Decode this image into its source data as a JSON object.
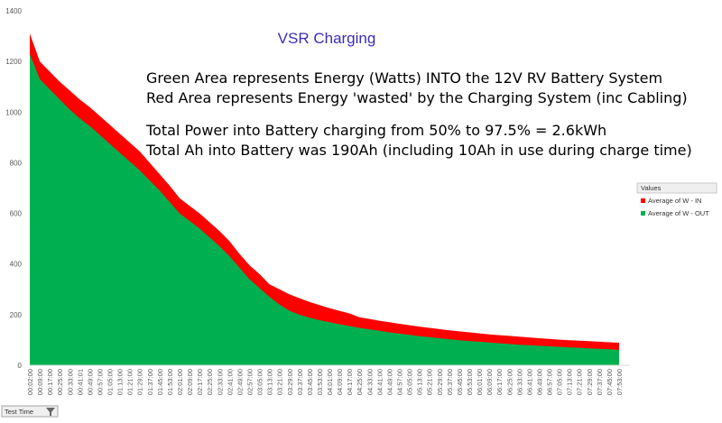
{
  "chart_data": {
    "type": "area",
    "title": "VSR Charging",
    "title_color": "#3b2db8",
    "annotations": [
      "Green Area represents Energy (Watts) INTO the 12V RV Battery System",
      "Red Area represents Energy 'wasted' by the Charging System (inc Cabling)",
      "Total Power into Battery charging from 50% to 97.5% = 2.6kWh",
      "Total Ah into Battery was 190Ah (including 10Ah in use during charge time)"
    ],
    "categories": [
      "00:02:00",
      "00:09:00",
      "00:17:00",
      "00:25:00",
      "00:33:00",
      "00:41:01",
      "00:49:00",
      "00:57:00",
      "01:05:00",
      "01:13:00",
      "01:21:00",
      "01:29:00",
      "01:37:00",
      "01:45:00",
      "01:53:00",
      "02:01:00",
      "02:09:00",
      "02:17:00",
      "02:25:00",
      "02:33:00",
      "02:41:00",
      "02:49:00",
      "02:57:00",
      "03:05:00",
      "03:13:00",
      "03:21:00",
      "03:29:00",
      "03:37:00",
      "03:45:00",
      "03:53:00",
      "04:01:00",
      "04:09:00",
      "04:17:00",
      "04:25:00",
      "04:33:00",
      "04:41:00",
      "04:49:00",
      "04:57:00",
      "05:05:00",
      "05:13:00",
      "05:21:00",
      "05:29:00",
      "05:37:00",
      "05:45:00",
      "05:53:00",
      "06:01:00",
      "06:09:00",
      "06:17:00",
      "06:25:00",
      "06:33:00",
      "06:41:00",
      "06:49:00",
      "06:57:00",
      "07:05:00",
      "07:13:00",
      "07:21:00",
      "07:29:00",
      "07:37:00",
      "07:45:00",
      "07:53:00"
    ],
    "series": [
      {
        "name": "Average of W - IN",
        "color": "#ff0000",
        "values": [
          1310,
          1200,
          1160,
          1120,
          1085,
          1050,
          1020,
          985,
          950,
          915,
          880,
          845,
          800,
          755,
          710,
          660,
          630,
          600,
          565,
          530,
          490,
          440,
          395,
          360,
          320,
          300,
          280,
          265,
          250,
          238,
          226,
          215,
          205,
          190,
          183,
          176,
          170,
          164,
          158,
          153,
          148,
          143,
          138,
          134,
          130,
          126,
          122,
          119,
          116,
          113,
          110,
          107,
          104,
          101,
          99,
          97,
          95,
          93,
          91,
          89
        ]
      },
      {
        "name": "Average of W - OUT",
        "color": "#00b050",
        "values": [
          1230,
          1130,
          1090,
          1050,
          1010,
          975,
          945,
          910,
          875,
          840,
          805,
          770,
          730,
          690,
          645,
          600,
          570,
          540,
          505,
          470,
          430,
          385,
          340,
          305,
          270,
          240,
          215,
          200,
          188,
          178,
          170,
          162,
          155,
          148,
          142,
          136,
          130,
          125,
          120,
          115,
          111,
          107,
          103,
          99,
          96,
          93,
          90,
          87,
          84,
          81,
          79,
          77,
          75,
          73,
          71,
          69,
          67,
          65,
          63,
          61
        ]
      }
    ],
    "ylim": [
      0,
      1400
    ],
    "yticks": [
      0,
      200,
      400,
      600,
      800,
      1000,
      1200,
      1400
    ],
    "legend_title": "Values",
    "field_button": "Test Time"
  }
}
